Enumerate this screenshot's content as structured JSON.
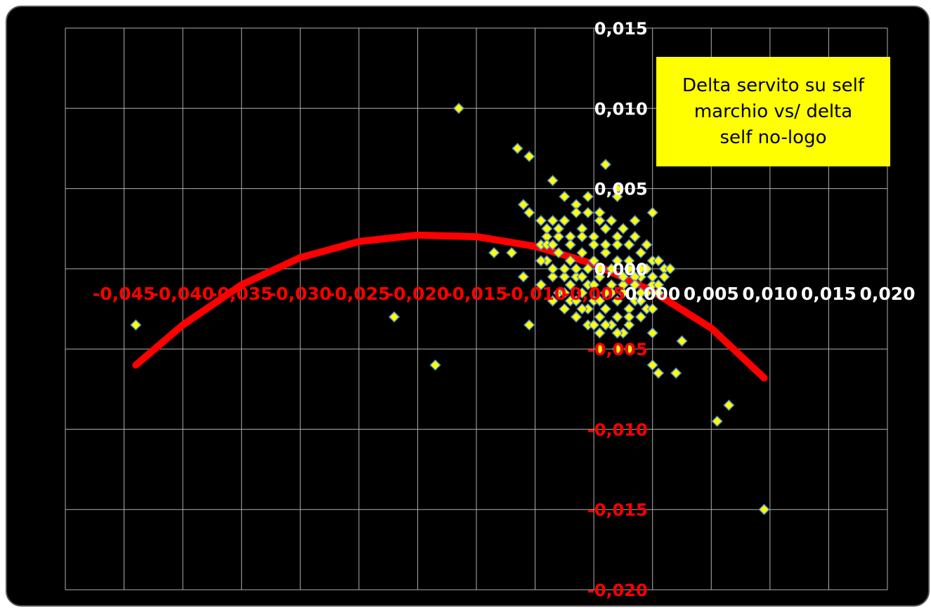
{
  "chart_data": {
    "type": "scatter",
    "title": "",
    "xlabel": "",
    "ylabel": "",
    "xlim": [
      -0.05,
      0.02
    ],
    "ylim": [
      -0.02,
      0.015
    ],
    "grid": true,
    "x_ticks": [
      "-0,045",
      "-0,040",
      "-0,035",
      "-0,030",
      "-0,025",
      "-0,020",
      "-0,015",
      "-0,010",
      "-0,005",
      "0,000",
      "0,005",
      "0,010",
      "0,015",
      "0,020"
    ],
    "y_ticks": [
      "0,015",
      "0,010",
      "0,005",
      "0,000",
      "-0,005",
      "-0,010",
      "-0,015",
      "-0,020"
    ],
    "annotation": "Delta servito su self\nmarchio vs/ delta\nself no-logo",
    "colors": {
      "background": "#000000",
      "grid": "#b0b0b0",
      "point_fill": "#ffff00",
      "point_stroke": "#5b8fd0",
      "trend": "#ff0000",
      "positive_tick": "#ffffff",
      "negative_tick": "#ff0000",
      "annotation_bg": "#ffff00"
    },
    "series": [
      {
        "type": "scatter",
        "points": [
          [
            -0.044,
            -0.0035
          ],
          [
            -0.022,
            -0.003
          ],
          [
            -0.0185,
            -0.006
          ],
          [
            -0.0165,
            0.01
          ],
          [
            -0.0115,
            0.0075
          ],
          [
            -0.0105,
            0.007
          ],
          [
            -0.0135,
            0.001
          ],
          [
            -0.012,
            0.001
          ],
          [
            -0.011,
            0.004
          ],
          [
            -0.0105,
            0.0035
          ],
          [
            -0.011,
            -0.0005
          ],
          [
            -0.0105,
            -0.0035
          ],
          [
            -0.0095,
            0.003
          ],
          [
            -0.0085,
            0.0055
          ],
          [
            -0.0075,
            0.0045
          ],
          [
            -0.0065,
            0.004
          ],
          [
            -0.0055,
            0.0045
          ],
          [
            -0.0045,
            0.003
          ],
          [
            -0.004,
            0.0065
          ],
          [
            -0.003,
            0.005
          ],
          [
            -0.003,
            0.0045
          ],
          [
            -0.0015,
            0.003
          ],
          [
            0.0,
            0.0035
          ],
          [
            -0.0045,
            -0.005
          ],
          [
            -0.003,
            -0.005
          ],
          [
            -0.002,
            -0.005
          ],
          [
            -0.0045,
            -0.004
          ],
          [
            -0.0065,
            -0.003
          ],
          [
            0.0,
            -0.004
          ],
          [
            0.0,
            -0.006
          ],
          [
            0.0005,
            -0.0065
          ],
          [
            0.002,
            -0.0065
          ],
          [
            0.0025,
            -0.0045
          ],
          [
            0.0055,
            -0.0095
          ],
          [
            0.0065,
            -0.0085
          ],
          [
            0.0095,
            -0.015
          ],
          [
            -0.0095,
            0.0015
          ],
          [
            -0.009,
            0.002
          ],
          [
            -0.008,
            0.002
          ],
          [
            -0.007,
            0.002
          ],
          [
            -0.006,
            0.0025
          ],
          [
            -0.005,
            0.002
          ],
          [
            -0.004,
            0.0025
          ],
          [
            -0.003,
            0.002
          ],
          [
            -0.002,
            0.0015
          ],
          [
            -0.001,
            0.001
          ],
          [
            0.0,
            0.0005
          ],
          [
            0.001,
            0.0
          ],
          [
            0.0015,
            0.0
          ],
          [
            -0.009,
            0.0005
          ],
          [
            -0.008,
            0.001
          ],
          [
            -0.007,
            0.0005
          ],
          [
            -0.006,
            0.001
          ],
          [
            -0.005,
            0.0005
          ],
          [
            -0.004,
            0.001
          ],
          [
            -0.003,
            0.0005
          ],
          [
            -0.002,
            0.0
          ],
          [
            -0.001,
            -0.0005
          ],
          [
            0.0,
            -0.001
          ],
          [
            0.0005,
            -0.0015
          ],
          [
            -0.0085,
            -0.0005
          ],
          [
            -0.0075,
            -0.0005
          ],
          [
            -0.0065,
            -0.0005
          ],
          [
            -0.0055,
            -0.001
          ],
          [
            -0.0045,
            -0.0005
          ],
          [
            -0.0035,
            -0.001
          ],
          [
            -0.0025,
            -0.0015
          ],
          [
            -0.0015,
            -0.002
          ],
          [
            -0.0005,
            -0.0025
          ],
          [
            -0.008,
            -0.0015
          ],
          [
            -0.007,
            -0.002
          ],
          [
            -0.006,
            -0.0015
          ],
          [
            -0.005,
            -0.002
          ],
          [
            -0.004,
            -0.0025
          ],
          [
            -0.003,
            -0.003
          ],
          [
            -0.002,
            -0.0035
          ],
          [
            -0.001,
            -0.003
          ],
          [
            -0.0065,
            -0.003
          ],
          [
            -0.0055,
            -0.0035
          ],
          [
            -0.0045,
            -0.003
          ],
          [
            -0.0035,
            -0.0035
          ],
          [
            -0.0025,
            -0.004
          ],
          [
            -0.009,
            0.0025
          ],
          [
            -0.0085,
            0.003
          ],
          [
            -0.0075,
            0.003
          ],
          [
            -0.0065,
            0.0035
          ],
          [
            -0.0055,
            0.0035
          ],
          [
            -0.0045,
            0.0035
          ],
          [
            -0.0035,
            0.003
          ],
          [
            -0.0025,
            0.0025
          ],
          [
            -0.0015,
            0.002
          ],
          [
            -0.0005,
            0.0015
          ],
          [
            -0.0095,
            -0.001
          ],
          [
            -0.0085,
            -0.002
          ],
          [
            -0.0075,
            -0.0025
          ],
          [
            -0.0065,
            -0.002
          ],
          [
            -0.0055,
            -0.0025
          ],
          [
            -0.0045,
            -0.002
          ],
          [
            -0.0035,
            -0.0015
          ],
          [
            -0.0025,
            -0.001
          ],
          [
            -0.0015,
            -0.0005
          ],
          [
            -0.0005,
            0.0
          ],
          [
            0.0005,
            0.0005
          ],
          [
            -0.009,
            0.0015
          ],
          [
            -0.008,
            0.0025
          ],
          [
            -0.007,
            0.0015
          ],
          [
            -0.006,
            0.002
          ],
          [
            -0.005,
            0.0015
          ],
          [
            -0.004,
            0.0015
          ],
          [
            -0.003,
            0.0015
          ],
          [
            -0.002,
            0.0005
          ],
          [
            -0.001,
            0.0
          ],
          [
            0.0,
            -0.0005
          ],
          [
            -0.0095,
            0.0005
          ],
          [
            -0.0085,
            0.0
          ],
          [
            -0.0075,
            0.0
          ],
          [
            -0.0065,
            0.0
          ],
          [
            -0.0055,
            0.0
          ],
          [
            -0.0045,
            0.0
          ],
          [
            -0.0035,
            0.0
          ],
          [
            -0.0025,
            -0.0005
          ],
          [
            -0.0015,
            -0.001
          ],
          [
            -0.0005,
            -0.0015
          ],
          [
            0.0005,
            -0.001
          ],
          [
            0.001,
            -0.0005
          ],
          [
            -0.007,
            -0.001
          ],
          [
            -0.006,
            -0.0005
          ],
          [
            -0.005,
            -0.001
          ],
          [
            -0.004,
            -0.0015
          ],
          [
            -0.003,
            -0.002
          ],
          [
            -0.002,
            -0.0025
          ],
          [
            -0.001,
            -0.002
          ],
          [
            0.0,
            -0.0025
          ],
          [
            -0.004,
            -0.0035
          ],
          [
            -0.003,
            -0.004
          ],
          [
            -0.002,
            -0.003
          ],
          [
            -0.001,
            -0.0015
          ],
          [
            -0.005,
            -0.0035
          ],
          [
            -0.006,
            -0.0025
          ],
          [
            -0.0075,
            -0.0015
          ],
          [
            -0.0085,
            0.0015
          ]
        ]
      },
      {
        "type": "trend",
        "name": "",
        "points": [
          [
            -0.044,
            -0.006
          ],
          [
            -0.04,
            -0.0035
          ],
          [
            -0.035,
            -0.001
          ],
          [
            -0.03,
            0.0007
          ],
          [
            -0.025,
            0.0017
          ],
          [
            -0.02,
            0.0021
          ],
          [
            -0.015,
            0.002
          ],
          [
            -0.01,
            0.0014
          ],
          [
            -0.005,
            0.0003
          ],
          [
            0.0,
            -0.0014
          ],
          [
            0.005,
            -0.0037
          ],
          [
            0.0095,
            -0.0068
          ]
        ]
      }
    ]
  }
}
